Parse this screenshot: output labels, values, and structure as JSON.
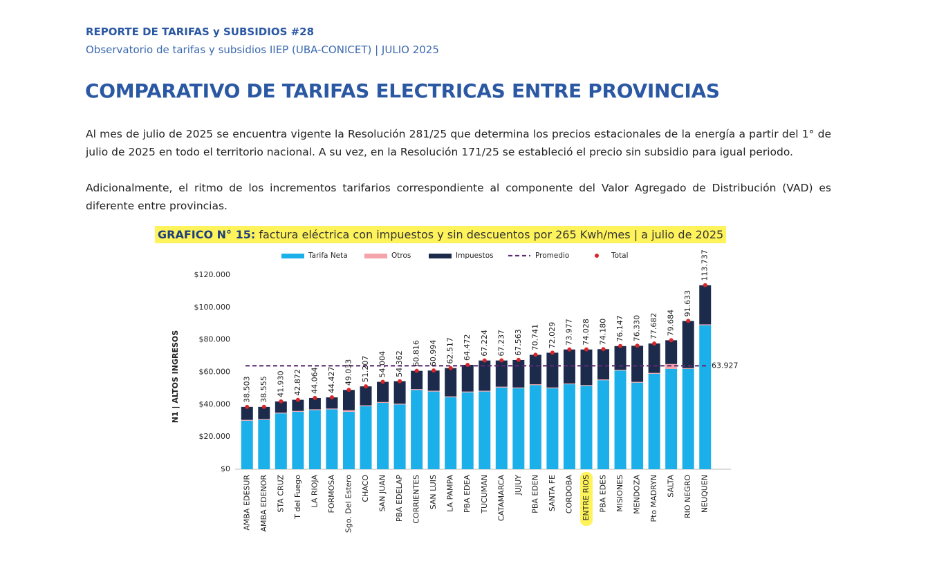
{
  "header": {
    "report": "REPORTE DE TARIFAS y SUBSIDIOS #28",
    "source": "Observatorio de tarifas y subsidios IIEP (UBA-CONICET) | JULIO 2025"
  },
  "title": "COMPARATIVO DE TARIFAS ELECTRICAS ENTRE PROVINCIAS",
  "paragraphs": [
    "Al mes de julio de 2025 se encuentra vigente la Resolución 281/25 que determina los precios estacionales de la energía a partir del 1° de julio de 2025 en todo el territorio nacional. A su vez, en la Resolución 171/25 se estableció el precio sin subsidio para igual periodo.",
    "Adicionalmente, el ritmo de los incrementos tarifarios correspondiente al componente del Valor Agregado de Distribución (VAD) es diferente entre provincias."
  ],
  "chart_data": {
    "type": "bar",
    "stacked": true,
    "title_label": "GRAFICO N° 15:",
    "title": "factura eléctrica con impuestos y sin descuentos por 265 Kwh/mes | a julio de 2025",
    "y_label": "N1 | ALTOS INGRESOS",
    "categories": [
      "AMBA EDESUR",
      "AMBA EDENOR",
      "STA CRUZ",
      "T del Fuego",
      "LA RIOJA",
      "FORMOSA",
      "Sgo. Del Estero",
      "CHACO",
      "SAN JUAN",
      "PBA EDELAP",
      "CORRIENTES",
      "SAN LUIS",
      "LA PAMPA",
      "PBA EDEA",
      "TUCUMAN",
      "CATAMARCA",
      "JUJUY",
      "PBA EDEN",
      "SANTA FE",
      "CORDOBA",
      "ENTRE RIOS",
      "PBA EDES",
      "MISIONES",
      "MENDOZA",
      "Pto MADRYN",
      "SALTA",
      "RIO NEGRO",
      "NEUQUEN"
    ],
    "highlight_index": 20,
    "series": [
      {
        "name": "Tarifa Neta",
        "type": "bar",
        "color": "#1cb0ea",
        "values": [
          30000,
          30500,
          34500,
          35500,
          36500,
          37000,
          35500,
          39000,
          41000,
          40000,
          49000,
          48000,
          44500,
          47500,
          48000,
          50500,
          50000,
          52000,
          50000,
          52500,
          51500,
          55000,
          61000,
          53500,
          59000,
          62000,
          62000,
          89000
        ]
      },
      {
        "name": "Otros",
        "type": "bar",
        "color": "#f4a3ab",
        "values": [
          500,
          500,
          500,
          500,
          500,
          500,
          1000,
          500,
          500,
          500,
          500,
          500,
          500,
          500,
          500,
          500,
          500,
          500,
          500,
          500,
          500,
          500,
          500,
          500,
          500,
          3000,
          500,
          500
        ]
      },
      {
        "name": "Impuestos",
        "type": "bar",
        "color": "#1c2b4b",
        "values": [
          8000,
          7500,
          6900,
          6900,
          7000,
          6900,
          12500,
          11700,
          12500,
          13900,
          11300,
          12500,
          17500,
          16500,
          18700,
          16200,
          17000,
          18200,
          21500,
          21000,
          22000,
          18700,
          14600,
          22300,
          18200,
          14700,
          29100,
          24200
        ]
      },
      {
        "name": "Promedio",
        "type": "line",
        "color": "#5e2b73",
        "value": 63927,
        "value_label": "63.927"
      },
      {
        "name": "Total",
        "type": "scatter",
        "color": "#d8262a",
        "values": [
          38503,
          38555,
          41930,
          42872,
          44064,
          44427,
          49033,
          51207,
          54004,
          54362,
          60816,
          60994,
          62517,
          64472,
          67224,
          67237,
          67563,
          70741,
          72029,
          73977,
          74028,
          74180,
          76147,
          76330,
          77682,
          79684,
          91633,
          113737
        ],
        "value_labels": [
          "38.503",
          "38.555",
          "41.930",
          "42.872",
          "44.064",
          "44.427",
          "49.033",
          "51.207",
          "54.004",
          "54.362",
          "60.816",
          "60.994",
          "62.517",
          "64.472",
          "67.224",
          "67.237",
          "67.563",
          "70.741",
          "72.029",
          "73.977",
          "74.028",
          "74.180",
          "76.147",
          "76.330",
          "77.682",
          "79.684",
          "91.633",
          "113.737"
        ]
      }
    ],
    "ylim": [
      0,
      120000
    ],
    "yticks": [
      {
        "value": 0,
        "label": "$0"
      },
      {
        "value": 20000,
        "label": "$20.000"
      },
      {
        "value": 40000,
        "label": "$40.000"
      },
      {
        "value": 60000,
        "label": "$60.000"
      },
      {
        "value": 80000,
        "label": "$80.000"
      },
      {
        "value": 100000,
        "label": "$100.000"
      },
      {
        "value": 120000,
        "label": "$120.000"
      }
    ],
    "grid": false,
    "legend": "top"
  }
}
